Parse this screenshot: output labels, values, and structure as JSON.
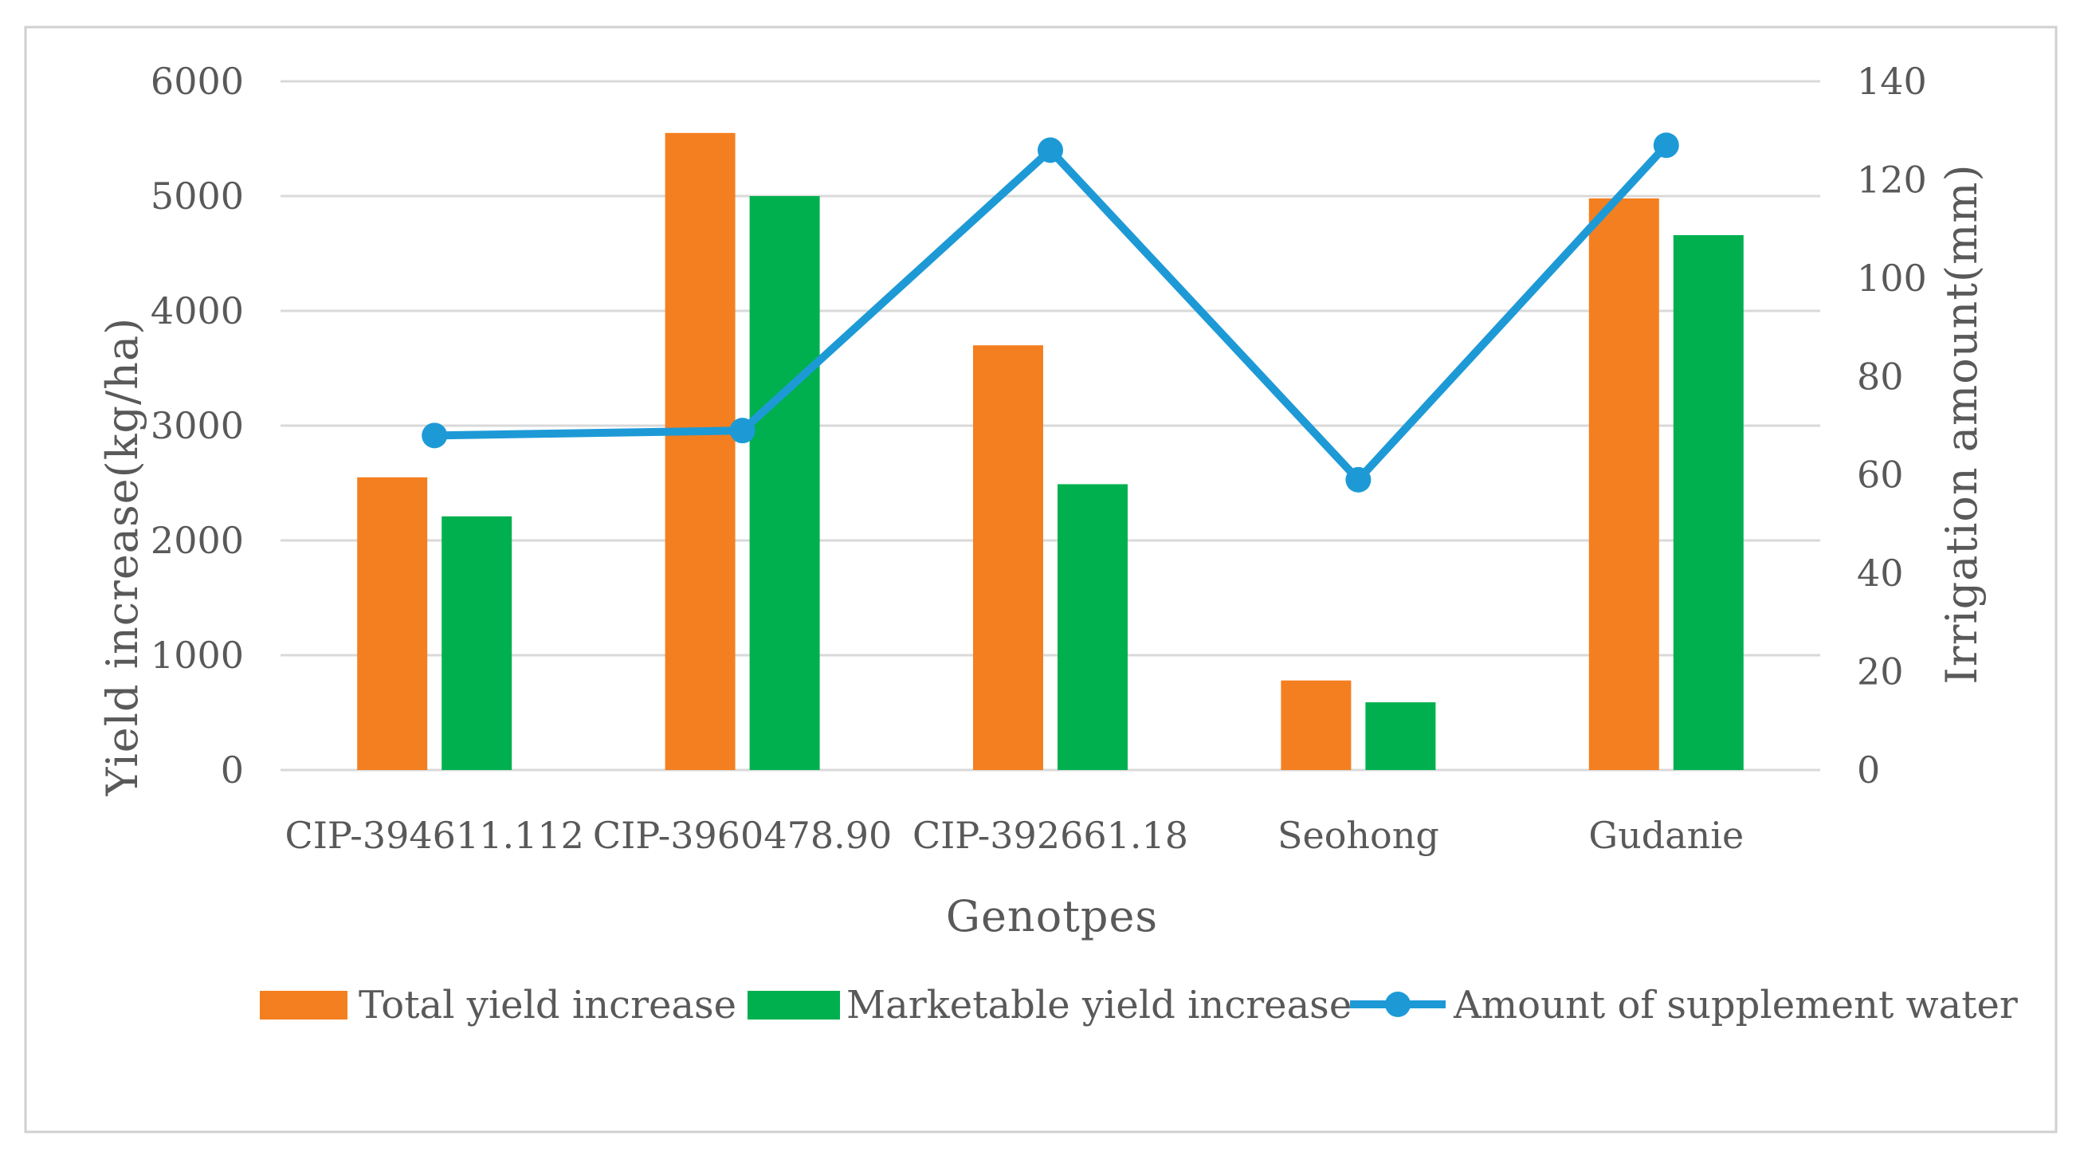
{
  "chart_data": {
    "type": "bar",
    "categories": [
      "CIP-394611.112",
      "CIP-3960478.90",
      "CIP-392661.18",
      "Seohong",
      "Gudanie"
    ],
    "series": [
      {
        "name": "Total yield increase",
        "kind": "bar",
        "axis": "left",
        "color": "#F47F20",
        "values": [
          2550,
          5550,
          3700,
          780,
          4980
        ]
      },
      {
        "name": "Marketable yield increase",
        "kind": "bar",
        "axis": "left",
        "color": "#00B04F",
        "values": [
          2210,
          5000,
          2490,
          590,
          4660
        ]
      },
      {
        "name": "Amount of supplement water",
        "kind": "line",
        "axis": "right",
        "color": "#1D9AD6",
        "values": [
          68,
          69,
          126,
          59,
          127
        ]
      }
    ],
    "xlabel": "Genotpes",
    "ylabel": "Yield increase(kg/ha)",
    "y2label": "Irrigation amount(mm)",
    "ylim": [
      0,
      6000
    ],
    "y2lim": [
      0,
      140
    ],
    "yticks": [
      0,
      1000,
      2000,
      3000,
      4000,
      5000,
      6000
    ],
    "y2ticks": [
      0,
      20,
      40,
      60,
      80,
      100,
      120,
      140
    ],
    "grid": true,
    "legend": "bottom",
    "gridColor": "#D9D9D9",
    "textColor": "#595959"
  }
}
